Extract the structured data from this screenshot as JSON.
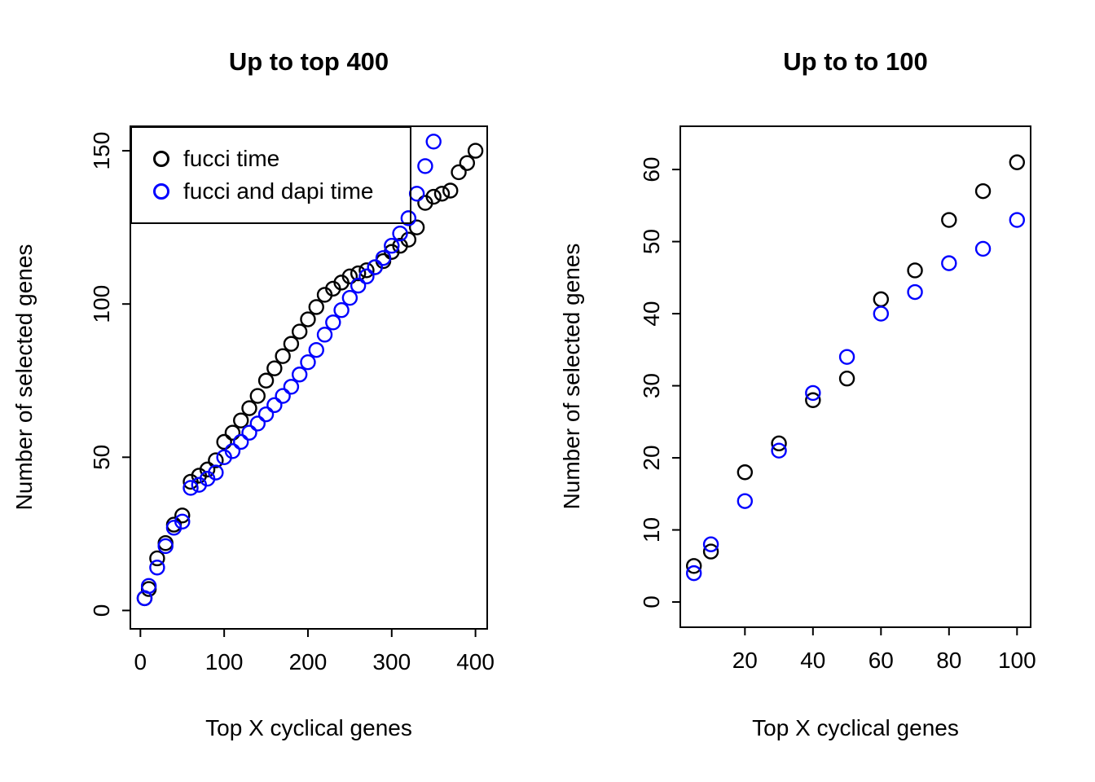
{
  "page": {
    "background": "#ffffff"
  },
  "chart_data": [
    {
      "type": "scatter",
      "title": "Up to top 400",
      "xlabel": "Top X cyclical genes",
      "ylabel": "Number of selected genes",
      "xlim": [
        -12,
        414
      ],
      "ylim": [
        -6,
        158
      ],
      "xticks": [
        0,
        100,
        200,
        300,
        400
      ],
      "yticks": [
        0,
        50,
        100,
        150
      ],
      "grid": false,
      "legend_position": "topleft",
      "series": [
        {
          "name": "fucci time",
          "color": "#000000",
          "points": [
            [
              5,
              4
            ],
            [
              10,
              7
            ],
            [
              20,
              17
            ],
            [
              30,
              22
            ],
            [
              40,
              28
            ],
            [
              50,
              31
            ],
            [
              60,
              42
            ],
            [
              70,
              44
            ],
            [
              80,
              46
            ],
            [
              90,
              49
            ],
            [
              100,
              55
            ],
            [
              110,
              58
            ],
            [
              120,
              62
            ],
            [
              130,
              66
            ],
            [
              140,
              70
            ],
            [
              150,
              75
            ],
            [
              160,
              79
            ],
            [
              170,
              83
            ],
            [
              180,
              87
            ],
            [
              190,
              91
            ],
            [
              200,
              95
            ],
            [
              210,
              99
            ],
            [
              220,
              103
            ],
            [
              230,
              105
            ],
            [
              240,
              107
            ],
            [
              250,
              109
            ],
            [
              260,
              110
            ],
            [
              270,
              111
            ],
            [
              280,
              112
            ],
            [
              290,
              114
            ],
            [
              300,
              117
            ],
            [
              310,
              119
            ],
            [
              320,
              121
            ],
            [
              330,
              125
            ],
            [
              340,
              133
            ],
            [
              350,
              135
            ],
            [
              360,
              136
            ],
            [
              370,
              137
            ],
            [
              380,
              143
            ],
            [
              390,
              146
            ],
            [
              400,
              150
            ]
          ]
        },
        {
          "name": "fucci and dapi time",
          "color": "#0000ff",
          "points": [
            [
              5,
              4
            ],
            [
              10,
              8
            ],
            [
              20,
              14
            ],
            [
              30,
              21
            ],
            [
              40,
              27
            ],
            [
              50,
              29
            ],
            [
              60,
              40
            ],
            [
              70,
              41
            ],
            [
              80,
              43
            ],
            [
              90,
              45
            ],
            [
              100,
              50
            ],
            [
              110,
              52
            ],
            [
              120,
              55
            ],
            [
              130,
              58
            ],
            [
              140,
              61
            ],
            [
              150,
              64
            ],
            [
              160,
              67
            ],
            [
              170,
              70
            ],
            [
              180,
              73
            ],
            [
              190,
              77
            ],
            [
              200,
              81
            ],
            [
              210,
              85
            ],
            [
              220,
              90
            ],
            [
              230,
              94
            ],
            [
              240,
              98
            ],
            [
              250,
              102
            ],
            [
              260,
              106
            ],
            [
              270,
              109
            ],
            [
              280,
              112
            ],
            [
              290,
              115
            ],
            [
              300,
              119
            ],
            [
              310,
              123
            ],
            [
              320,
              128
            ],
            [
              330,
              136
            ],
            [
              340,
              145
            ],
            [
              350,
              153
            ]
          ]
        }
      ]
    },
    {
      "type": "scatter",
      "title": "Up to to 100",
      "xlabel": "Top X cyclical genes",
      "ylabel": "Number of selected genes",
      "xlim": [
        1,
        104
      ],
      "ylim": [
        -3.5,
        66
      ],
      "xticks": [
        20,
        40,
        60,
        80,
        100
      ],
      "yticks": [
        0,
        10,
        20,
        30,
        40,
        50,
        60
      ],
      "grid": false,
      "legend_position": "none",
      "series": [
        {
          "name": "fucci time",
          "color": "#000000",
          "points": [
            [
              5,
              5
            ],
            [
              10,
              7
            ],
            [
              20,
              18
            ],
            [
              30,
              22
            ],
            [
              40,
              28
            ],
            [
              50,
              31
            ],
            [
              60,
              42
            ],
            [
              70,
              46
            ],
            [
              80,
              53
            ],
            [
              90,
              57
            ],
            [
              100,
              61
            ]
          ]
        },
        {
          "name": "fucci and dapi time",
          "color": "#0000ff",
          "points": [
            [
              5,
              4
            ],
            [
              10,
              8
            ],
            [
              20,
              14
            ],
            [
              30,
              21
            ],
            [
              40,
              29
            ],
            [
              50,
              34
            ],
            [
              60,
              40
            ],
            [
              70,
              43
            ],
            [
              80,
              47
            ],
            [
              90,
              49
            ],
            [
              100,
              53
            ]
          ]
        }
      ]
    }
  ]
}
